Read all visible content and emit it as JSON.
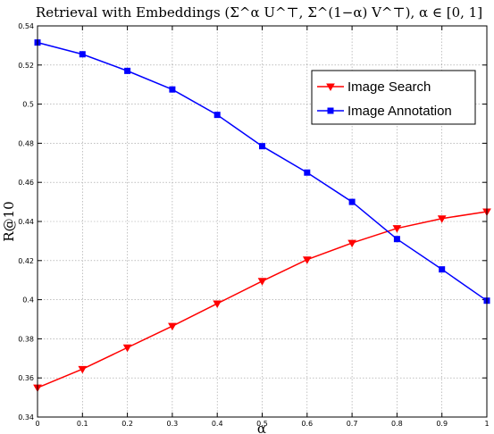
{
  "chart_data": {
    "type": "line",
    "title": "Retrieval with Embeddings (Σ^α U^⊤, Σ^(1−α) V^⊤), α ∈ [0, 1]",
    "xlabel": "α",
    "ylabel": "R@10",
    "x": [
      0,
      0.1,
      0.2,
      0.3,
      0.4,
      0.5,
      0.6,
      0.7,
      0.8,
      0.9,
      1
    ],
    "xlim": [
      0,
      1
    ],
    "ylim": [
      0.34,
      0.54
    ],
    "xticks": [
      "0",
      "0.1",
      "0.2",
      "0.3",
      "0.4",
      "0.5",
      "0.6",
      "0.7",
      "0.8",
      "0.9",
      "1"
    ],
    "yticks": [
      "0.34",
      "0.36",
      "0.38",
      "0.4",
      "0.42",
      "0.44",
      "0.46",
      "0.48",
      "0.5",
      "0.52",
      "0.54"
    ],
    "grid": true,
    "legend_position": "top-right",
    "series": [
      {
        "name": "Image Search",
        "color": "#ff0000",
        "marker": "triangle-down",
        "values": [
          0.355,
          0.3645,
          0.3755,
          0.3865,
          0.398,
          0.4095,
          0.4205,
          0.429,
          0.4365,
          0.4415,
          0.445
        ]
      },
      {
        "name": "Image Annotation",
        "color": "#0000ff",
        "marker": "square",
        "values": [
          0.5315,
          0.5255,
          0.517,
          0.5075,
          0.4945,
          0.4785,
          0.465,
          0.45,
          0.431,
          0.4155,
          0.3995
        ]
      }
    ]
  }
}
